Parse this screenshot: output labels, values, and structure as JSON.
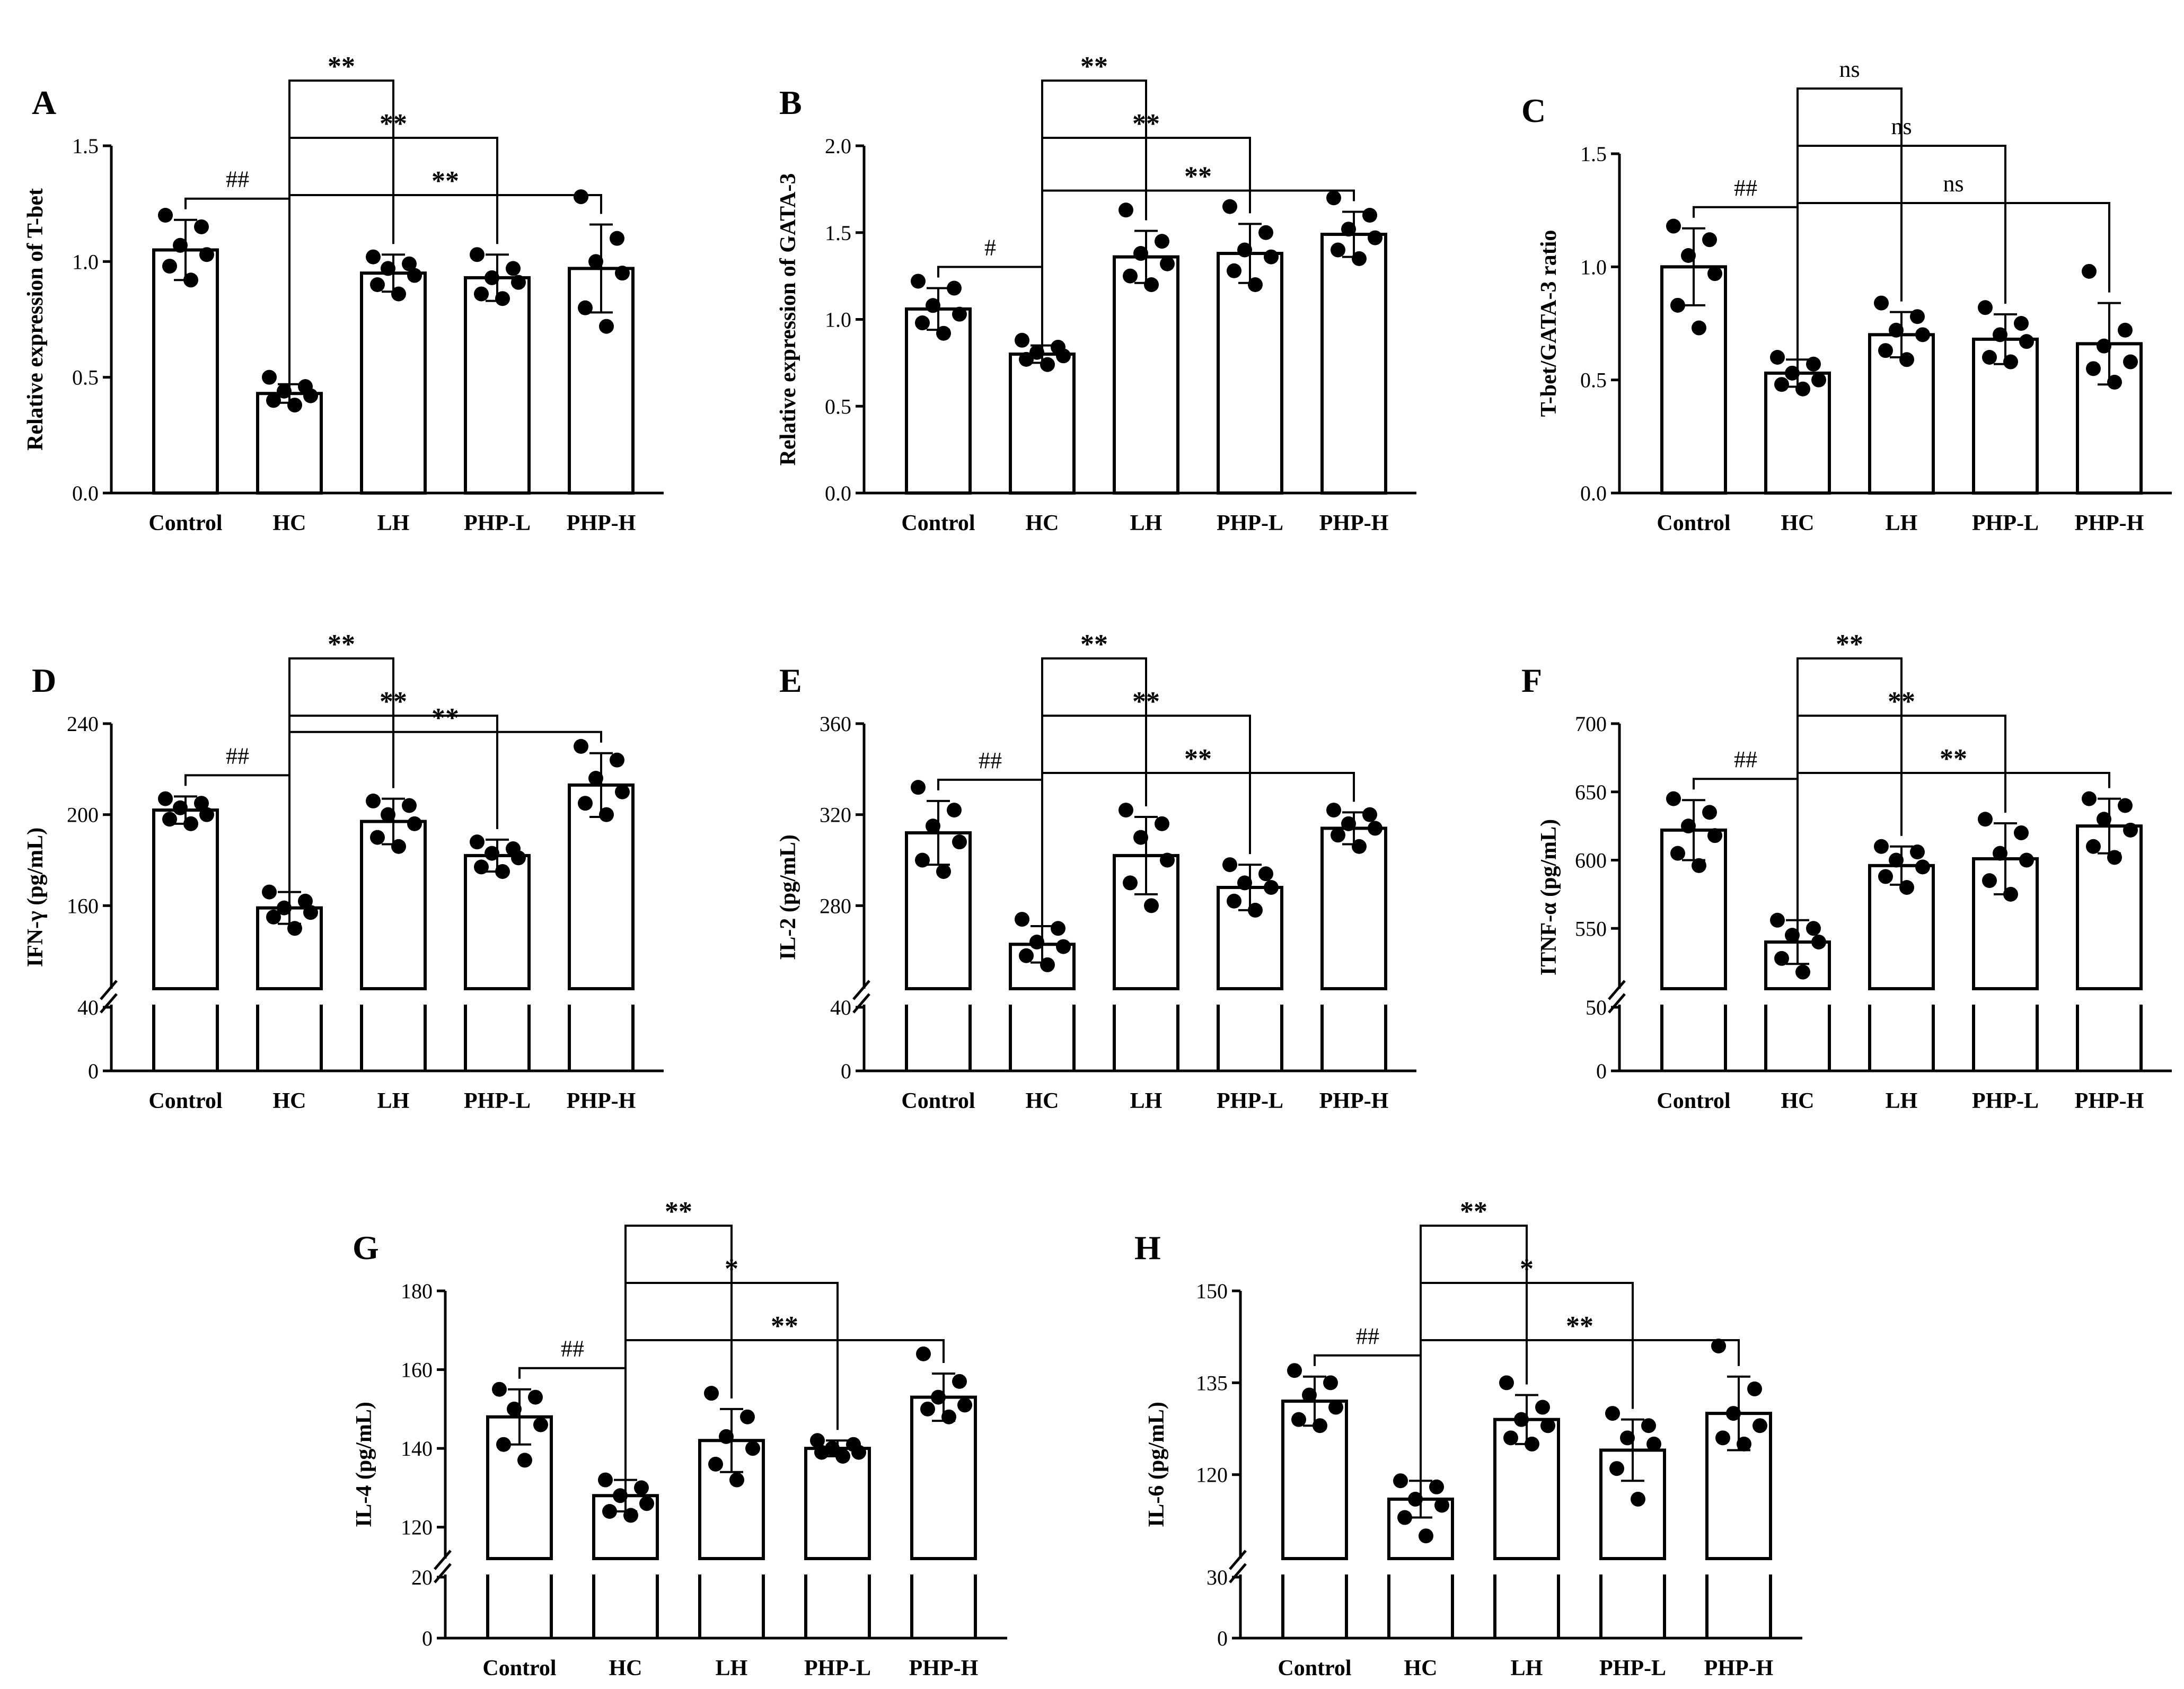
{
  "chart_data": [
    {
      "panel": "A",
      "type": "bar",
      "ylabel": "Relative expression of T-bet",
      "categories": [
        "Control",
        "HC",
        "LH",
        "PHP-L",
        "PHP-H"
      ],
      "values": [
        1.05,
        0.43,
        0.95,
        0.93,
        0.97
      ],
      "sd": [
        0.13,
        0.04,
        0.08,
        0.1,
        0.19
      ],
      "points": [
        [
          1.2,
          1.15,
          1.07,
          1.03,
          0.98,
          0.92
        ],
        [
          0.5,
          0.46,
          0.44,
          0.42,
          0.4,
          0.38
        ],
        [
          1.02,
          0.99,
          0.97,
          0.94,
          0.9,
          0.86
        ],
        [
          1.03,
          0.97,
          0.93,
          0.91,
          0.86,
          0.84
        ],
        [
          1.28,
          1.1,
          1.0,
          0.95,
          0.8,
          0.72
        ]
      ],
      "ylim": [
        0,
        1.5
      ],
      "yticks": [
        "0.0",
        "0.5",
        "1.0",
        "1.5"
      ],
      "brackets": [
        {
          "from": 0,
          "to": 1,
          "label": "##"
        },
        {
          "from": 1,
          "to": 2,
          "label": "**"
        },
        {
          "from": 1,
          "to": 3,
          "label": "**"
        },
        {
          "from": 1,
          "to": 4,
          "label": "**"
        }
      ]
    },
    {
      "panel": "B",
      "type": "bar",
      "ylabel": "Relative expression of GATA-3",
      "categories": [
        "Control",
        "HC",
        "LH",
        "PHP-L",
        "PHP-H"
      ],
      "values": [
        1.06,
        0.8,
        1.36,
        1.38,
        1.49
      ],
      "sd": [
        0.12,
        0.05,
        0.15,
        0.17,
        0.13
      ],
      "points": [
        [
          1.22,
          1.18,
          1.08,
          1.03,
          0.98,
          0.92
        ],
        [
          0.88,
          0.84,
          0.81,
          0.79,
          0.77,
          0.74
        ],
        [
          1.63,
          1.45,
          1.38,
          1.32,
          1.25,
          1.2
        ],
        [
          1.65,
          1.5,
          1.4,
          1.36,
          1.28,
          1.2
        ],
        [
          1.7,
          1.6,
          1.52,
          1.47,
          1.4,
          1.35
        ]
      ],
      "ylim": [
        0,
        2.0
      ],
      "yticks": [
        "0.0",
        "0.5",
        "1.0",
        "1.5",
        "2.0"
      ],
      "brackets": [
        {
          "from": 0,
          "to": 1,
          "label": "#"
        },
        {
          "from": 1,
          "to": 2,
          "label": "**"
        },
        {
          "from": 1,
          "to": 3,
          "label": "**"
        },
        {
          "from": 1,
          "to": 4,
          "label": "**"
        }
      ]
    },
    {
      "panel": "C",
      "type": "bar",
      "ylabel": "T-bet/GATA-3 ratio",
      "categories": [
        "Control",
        "HC",
        "LH",
        "PHP-L",
        "PHP-H"
      ],
      "values": [
        1.0,
        0.53,
        0.7,
        0.68,
        0.66
      ],
      "sd": [
        0.17,
        0.06,
        0.1,
        0.11,
        0.18
      ],
      "points": [
        [
          1.18,
          1.12,
          1.05,
          0.97,
          0.83,
          0.73
        ],
        [
          0.6,
          0.57,
          0.53,
          0.5,
          0.48,
          0.46
        ],
        [
          0.84,
          0.78,
          0.72,
          0.7,
          0.63,
          0.59
        ],
        [
          0.82,
          0.75,
          0.7,
          0.67,
          0.6,
          0.58
        ],
        [
          0.98,
          0.72,
          0.65,
          0.58,
          0.55,
          0.49
        ]
      ],
      "ylim": [
        0,
        1.5
      ],
      "yticks": [
        "0.0",
        "0.5",
        "1.0",
        "1.5"
      ],
      "brackets": [
        {
          "from": 0,
          "to": 1,
          "label": "##"
        },
        {
          "from": 1,
          "to": 2,
          "label": "ns"
        },
        {
          "from": 1,
          "to": 3,
          "label": "ns"
        },
        {
          "from": 1,
          "to": 4,
          "label": "ns"
        }
      ]
    },
    {
      "panel": "D",
      "type": "bar",
      "ylabel": "IFN-γ (pg/mL)",
      "categories": [
        "Control",
        "HC",
        "LH",
        "PHP-L",
        "PHP-H"
      ],
      "values": [
        202,
        159,
        197,
        182,
        213
      ],
      "sd": [
        6,
        7,
        10,
        7,
        14
      ],
      "points": [
        [
          207,
          205,
          203,
          200,
          198,
          196
        ],
        [
          166,
          162,
          159,
          157,
          155,
          150
        ],
        [
          206,
          204,
          200,
          196,
          190,
          186
        ],
        [
          188,
          185,
          183,
          181,
          177,
          175
        ],
        [
          230,
          224,
          216,
          210,
          205,
          200
        ]
      ],
      "broken_axis": {
        "low": [
          0,
          40
        ],
        "high": [
          120,
          240
        ]
      },
      "yticks_low": [
        "0",
        "40"
      ],
      "yticks_high": [
        "160",
        "200",
        "240"
      ],
      "brackets": [
        {
          "from": 0,
          "to": 1,
          "label": "##"
        },
        {
          "from": 1,
          "to": 2,
          "label": "**"
        },
        {
          "from": 1,
          "to": 3,
          "label": "**"
        },
        {
          "from": 1,
          "to": 4,
          "label": "**"
        }
      ]
    },
    {
      "panel": "E",
      "type": "bar",
      "ylabel": "IL-2 (pg/mL)",
      "categories": [
        "Control",
        "HC",
        "LH",
        "PHP-L",
        "PHP-H"
      ],
      "values": [
        312,
        263,
        302,
        288,
        314
      ],
      "sd": [
        14,
        8,
        17,
        10,
        7
      ],
      "points": [
        [
          332,
          322,
          315,
          308,
          300,
          295
        ],
        [
          274,
          270,
          264,
          262,
          258,
          254
        ],
        [
          322,
          316,
          310,
          300,
          290,
          280
        ],
        [
          298,
          294,
          290,
          288,
          282,
          278
        ],
        [
          322,
          320,
          316,
          314,
          311,
          306
        ]
      ],
      "broken_axis": {
        "low": [
          0,
          40
        ],
        "high": [
          240,
          360
        ]
      },
      "yticks_low": [
        "0",
        "40"
      ],
      "yticks_high": [
        "280",
        "320",
        "360"
      ],
      "brackets": [
        {
          "from": 0,
          "to": 1,
          "label": "##"
        },
        {
          "from": 1,
          "to": 2,
          "label": "**"
        },
        {
          "from": 1,
          "to": 3,
          "label": "**"
        },
        {
          "from": 1,
          "to": 4,
          "label": "**"
        }
      ]
    },
    {
      "panel": "F",
      "type": "bar",
      "ylabel": "ITNF-α (pg/mL)",
      "categories": [
        "Control",
        "HC",
        "LH",
        "PHP-L",
        "PHP-H"
      ],
      "values": [
        622,
        540,
        596,
        601,
        625
      ],
      "sd": [
        22,
        16,
        14,
        26,
        20
      ],
      "points": [
        [
          645,
          635,
          625,
          618,
          605,
          596
        ],
        [
          556,
          550,
          545,
          540,
          528,
          518
        ],
        [
          610,
          606,
          600,
          595,
          588,
          580
        ],
        [
          630,
          620,
          605,
          600,
          585,
          575
        ],
        [
          645,
          640,
          630,
          622,
          610,
          602
        ]
      ],
      "broken_axis": {
        "low": [
          0,
          50
        ],
        "high": [
          500,
          700
        ]
      },
      "yticks_low": [
        "0",
        "50"
      ],
      "yticks_high": [
        "550",
        "600",
        "650",
        "700"
      ],
      "brackets": [
        {
          "from": 0,
          "to": 1,
          "label": "##"
        },
        {
          "from": 1,
          "to": 2,
          "label": "**"
        },
        {
          "from": 1,
          "to": 3,
          "label": "**"
        },
        {
          "from": 1,
          "to": 4,
          "label": "**"
        }
      ]
    },
    {
      "panel": "G",
      "type": "bar",
      "ylabel": "IL-4 (pg/mL)",
      "categories": [
        "Control",
        "HC",
        "LH",
        "PHP-L",
        "PHP-H"
      ],
      "values": [
        148,
        128,
        142,
        140,
        153
      ],
      "sd": [
        7,
        4,
        8,
        2,
        6
      ],
      "points": [
        [
          155,
          153,
          150,
          146,
          141,
          137
        ],
        [
          132,
          130,
          128,
          126,
          124,
          123
        ],
        [
          154,
          148,
          143,
          140,
          136,
          132
        ],
        [
          142,
          141,
          140,
          139,
          139,
          138
        ],
        [
          164,
          157,
          153,
          151,
          150,
          148
        ]
      ],
      "broken_axis": {
        "low": [
          0,
          20
        ],
        "high": [
          110,
          180
        ]
      },
      "yticks_low": [
        "0",
        "20"
      ],
      "yticks_high": [
        "120",
        "140",
        "160",
        "180"
      ],
      "brackets": [
        {
          "from": 0,
          "to": 1,
          "label": "##"
        },
        {
          "from": 1,
          "to": 2,
          "label": "**"
        },
        {
          "from": 1,
          "to": 3,
          "label": "*"
        },
        {
          "from": 1,
          "to": 4,
          "label": "**"
        }
      ]
    },
    {
      "panel": "H",
      "type": "bar",
      "ylabel": "IL-6 (pg/mL)",
      "categories": [
        "Control",
        "HC",
        "LH",
        "PHP-L",
        "PHP-H"
      ],
      "values": [
        132,
        116,
        129,
        124,
        130
      ],
      "sd": [
        4,
        3,
        4,
        5,
        6
      ],
      "points": [
        [
          137,
          135,
          133,
          131,
          129,
          128
        ],
        [
          119,
          118,
          116,
          115,
          113,
          110
        ],
        [
          135,
          131,
          129,
          128,
          126,
          125
        ],
        [
          130,
          128,
          126,
          125,
          121,
          116
        ],
        [
          141,
          134,
          130,
          128,
          126,
          125
        ]
      ],
      "broken_axis": {
        "low": [
          0,
          30
        ],
        "high": [
          105,
          150
        ]
      },
      "yticks_low": [
        "0",
        "30"
      ],
      "yticks_high": [
        "120",
        "135",
        "150"
      ],
      "brackets": [
        {
          "from": 0,
          "to": 1,
          "label": "##"
        },
        {
          "from": 1,
          "to": 2,
          "label": "**"
        },
        {
          "from": 1,
          "to": 3,
          "label": "*"
        },
        {
          "from": 1,
          "to": 4,
          "label": "**"
        }
      ]
    }
  ]
}
